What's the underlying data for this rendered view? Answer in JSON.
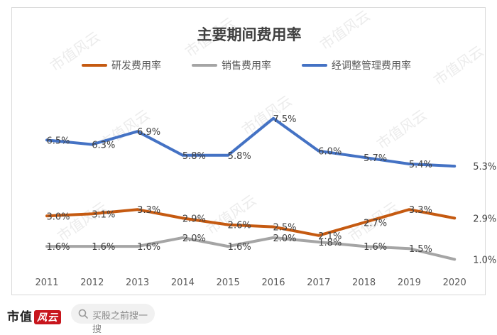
{
  "chart_data": {
    "type": "line",
    "title": "主要期间费用率",
    "categories": [
      "2011",
      "2012",
      "2013",
      "2014",
      "2015",
      "2016",
      "2017",
      "2018",
      "2019",
      "2020"
    ],
    "series": [
      {
        "name": "研发费用率",
        "color": "#c55a11",
        "values": [
          3.0,
          3.1,
          3.3,
          2.9,
          2.6,
          2.5,
          2.1,
          2.7,
          3.3,
          2.9
        ],
        "labels": [
          "3.0%",
          "3.1%",
          "3.3%",
          "2.9%",
          "2.6%",
          "2.5%",
          "2.1%",
          "2.7%",
          "3.3%",
          "2.9%"
        ]
      },
      {
        "name": "销售费用率",
        "color": "#a5a5a5",
        "values": [
          1.6,
          1.6,
          1.6,
          2.0,
          1.6,
          2.0,
          1.8,
          1.6,
          1.5,
          1.0
        ],
        "labels": [
          "1.6%",
          "1.6%",
          "1.6%",
          "2.0%",
          "1.6%",
          "2.0%",
          "1.8%",
          "1.6%",
          "1.5%",
          "1.0%"
        ]
      },
      {
        "name": "经调整管理费用率",
        "color": "#4472c4",
        "values": [
          6.5,
          6.3,
          6.9,
          5.8,
          5.8,
          7.5,
          6.0,
          5.7,
          5.4,
          5.3
        ],
        "labels": [
          "6.5%",
          "6.3%",
          "6.9%",
          "5.8%",
          "5.8%",
          "7.5%",
          "6.0%",
          "5.7%",
          "5.4%",
          "5.3%"
        ]
      }
    ],
    "ylim": [
      0,
      9
    ],
    "grid": false,
    "legend_position": "top"
  },
  "watermark": "市值风云",
  "footer": {
    "brand": "市值",
    "brand_badge": "风云",
    "search_placeholder": "买股之前搜一搜",
    "search_icon": "search-icon"
  }
}
